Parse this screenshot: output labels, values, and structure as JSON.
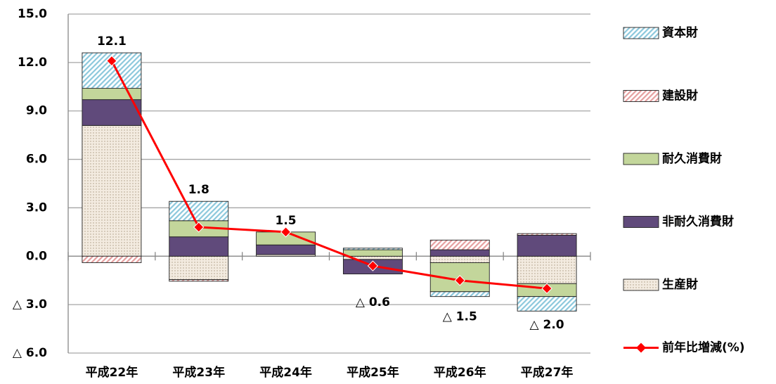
{
  "chart_data": {
    "type": "bar",
    "categories": [
      "平成22年",
      "平成23年",
      "平成24年",
      "平成25年",
      "平成26年",
      "平成27年"
    ],
    "series": [
      {
        "name": "生産財",
        "color": "#f3ebe0",
        "fill_style": "dots",
        "values": [
          8.1,
          -1.45,
          0.1,
          -0.2,
          -0.4,
          -1.7
        ]
      },
      {
        "name": "非耐久消費財",
        "color": "#604a7b",
        "fill_style": "solid",
        "values": [
          1.6,
          1.2,
          0.6,
          -0.9,
          0.4,
          1.3
        ]
      },
      {
        "name": "耐久消費財",
        "color": "#c3d69b",
        "fill_style": "solid",
        "values": [
          0.7,
          1.0,
          0.8,
          0.4,
          -1.8,
          -0.8
        ]
      },
      {
        "name": "建設財",
        "color": "#e6a0a0",
        "fill_style": "hatch",
        "values": [
          -0.4,
          -0.1,
          0,
          0,
          0.6,
          0.1
        ]
      },
      {
        "name": "資本財",
        "color": "#8cc8dc",
        "fill_style": "hatch",
        "values": [
          2.2,
          1.2,
          0,
          0.1,
          -0.3,
          -0.9
        ]
      }
    ],
    "line": {
      "name": "前年比増減(%)",
      "color": "#ff0000",
      "values": [
        12.1,
        1.8,
        1.5,
        -0.6,
        -1.5,
        -2.0
      ],
      "value_labels": [
        "12.1",
        "1.8",
        "1.5",
        "△ 0.6",
        "△ 1.5",
        "△ 2.0"
      ]
    },
    "ylim": [
      -6,
      15
    ],
    "yticks": [
      {
        "value": -6,
        "label": "△ 6.0"
      },
      {
        "value": -3,
        "label": "△ 3.0"
      },
      {
        "value": 0,
        "label": "0.0"
      },
      {
        "value": 3,
        "label": "3.0"
      },
      {
        "value": 6,
        "label": "6.0"
      },
      {
        "value": 9,
        "label": "9.0"
      },
      {
        "value": 12,
        "label": "12.0"
      },
      {
        "value": 15,
        "label": "15.0"
      }
    ],
    "grid": true,
    "legend": "right"
  }
}
